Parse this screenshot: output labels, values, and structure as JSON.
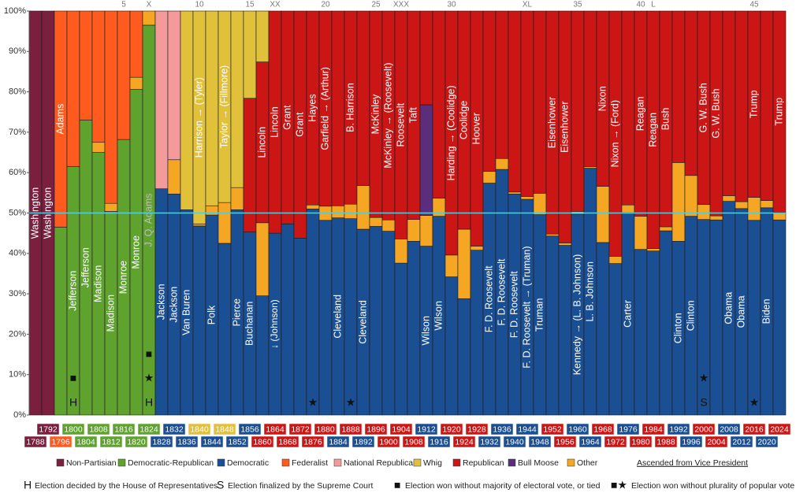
{
  "chart_data": {
    "type": "stacked_bar",
    "categories": [
      "1788",
      "1792",
      "1796",
      "1800",
      "1804",
      "1808",
      "1812",
      "1816",
      "1820",
      "1824",
      "1828",
      "1832",
      "1836",
      "1840",
      "1844",
      "1848",
      "1852",
      "1856",
      "1860",
      "1864",
      "1868",
      "1872",
      "1876",
      "1880",
      "1884",
      "1888",
      "1892",
      "1896",
      "1900",
      "1904",
      "1908",
      "1912",
      "1916",
      "1920",
      "1924",
      "1928",
      "1932",
      "1936",
      "1940",
      "1944",
      "1948",
      "1952",
      "1956",
      "1960",
      "1964",
      "1968",
      "1972",
      "1976",
      "1980",
      "1984",
      "1988",
      "1992",
      "1996",
      "2000",
      "2004",
      "2008",
      "2012",
      "2016",
      "2020",
      "2024"
    ],
    "series": [
      {
        "name": "Non-Partisian",
        "color": "#7a1f3d",
        "values": [
          100,
          100,
          null,
          null,
          null,
          null,
          null,
          null,
          null,
          null,
          null,
          null,
          null,
          null,
          null,
          null,
          null,
          null,
          null,
          null,
          null,
          null,
          null,
          null,
          null,
          null,
          null,
          null,
          null,
          null,
          null,
          null,
          null,
          null,
          null,
          null,
          null,
          null,
          null,
          null,
          null,
          null,
          null,
          null,
          null,
          null,
          null,
          null,
          null,
          null,
          null,
          null,
          null,
          null,
          null,
          null,
          null,
          null,
          null,
          null
        ]
      },
      {
        "name": "Democratic-Republican",
        "color": "#5fa32e",
        "values": [
          null,
          null,
          46.5,
          61.5,
          73,
          65,
          50.4,
          68.2,
          80.6,
          96.5,
          null,
          null,
          null,
          null,
          null,
          null,
          null,
          null,
          null,
          null,
          null,
          null,
          null,
          null,
          null,
          null,
          null,
          null,
          null,
          null,
          null,
          null,
          null,
          null,
          null,
          null,
          null,
          null,
          null,
          null,
          null,
          null,
          null,
          null,
          null,
          null,
          null,
          null,
          null,
          null,
          null,
          null,
          null,
          null,
          null,
          null,
          null,
          null,
          null,
          null
        ]
      },
      {
        "name": "Democratic",
        "color": "#1b4f93",
        "values": [
          null,
          null,
          null,
          null,
          null,
          null,
          null,
          null,
          null,
          null,
          56,
          54.7,
          50.8,
          46.8,
          49.5,
          42.5,
          50.8,
          45.3,
          29.5,
          45,
          47.3,
          43.8,
          51,
          48.2,
          48.8,
          48.6,
          46,
          46.7,
          45.5,
          37.6,
          43,
          41.8,
          49.2,
          34.2,
          28.8,
          40.8,
          57.4,
          60.8,
          54.7,
          53.4,
          49.6,
          44.3,
          42,
          49.7,
          61.1,
          42.7,
          37.5,
          50.1,
          41,
          40.6,
          45.6,
          43,
          49.2,
          48.4,
          48.3,
          52.9,
          51.1,
          48.2,
          51.3,
          48.3
        ]
      },
      {
        "name": "Federalist",
        "color": "#ff5b1f",
        "values": [
          null,
          null,
          53.5,
          38.5,
          27,
          32.5,
          47.6,
          31.8,
          16.4,
          null,
          null,
          null,
          null,
          null,
          null,
          null,
          null,
          null,
          null,
          null,
          null,
          null,
          null,
          null,
          null,
          null,
          null,
          null,
          null,
          null,
          null,
          null,
          null,
          null,
          null,
          null,
          null,
          null,
          null,
          null,
          null,
          null,
          null,
          null,
          null,
          null,
          null,
          null,
          null,
          null,
          null,
          null,
          null,
          null,
          null,
          null,
          null,
          null,
          null,
          null
        ]
      },
      {
        "name": "National Republican",
        "color": "#f49a9a",
        "values": [
          null,
          null,
          null,
          null,
          null,
          null,
          null,
          null,
          null,
          null,
          44,
          36.8,
          null,
          null,
          null,
          null,
          null,
          null,
          null,
          null,
          null,
          null,
          null,
          null,
          null,
          null,
          null,
          null,
          null,
          null,
          null,
          null,
          null,
          null,
          null,
          null,
          null,
          null,
          null,
          null,
          null,
          null,
          null,
          null,
          null,
          null,
          null,
          null,
          null,
          null,
          null,
          null,
          null,
          null,
          null,
          null,
          null,
          null,
          null,
          null
        ]
      },
      {
        "name": "Whig",
        "color": "#e2c13a",
        "values": [
          null,
          null,
          null,
          null,
          null,
          null,
          null,
          null,
          null,
          null,
          null,
          null,
          49.2,
          52.7,
          48.2,
          47.4,
          43.7,
          21.6,
          12.6,
          null,
          null,
          null,
          null,
          null,
          null,
          null,
          null,
          null,
          null,
          null,
          null,
          null,
          null,
          null,
          null,
          null,
          null,
          null,
          null,
          null,
          null,
          null,
          null,
          null,
          null,
          null,
          null,
          null,
          null,
          null,
          null,
          null,
          null,
          null,
          null,
          null,
          null,
          null,
          null,
          null
        ]
      },
      {
        "name": "Republican",
        "color": "#cc1616",
        "values": [
          null,
          null,
          null,
          null,
          null,
          null,
          null,
          null,
          null,
          null,
          null,
          null,
          null,
          null,
          null,
          null,
          null,
          33.1,
          39.8,
          55,
          52.7,
          56.2,
          48,
          48.3,
          48.2,
          47.8,
          43.2,
          51.1,
          51.7,
          56.4,
          51.6,
          23.2,
          46.3,
          60.4,
          54,
          58.2,
          39.7,
          36.5,
          44.8,
          45.9,
          45.1,
          55.2,
          57.4,
          49.6,
          38.5,
          43.4,
          60.7,
          48,
          50.8,
          58.8,
          53.4,
          37.5,
          40.7,
          47.9,
          50.7,
          45.7,
          47.2,
          46.1,
          46.9,
          49.8
        ]
      },
      {
        "name": "Bull Moose",
        "color": "#5a2d7d",
        "values": [
          null,
          null,
          null,
          null,
          null,
          null,
          null,
          null,
          null,
          null,
          null,
          null,
          null,
          null,
          null,
          null,
          null,
          null,
          null,
          null,
          null,
          null,
          null,
          null,
          null,
          null,
          null,
          null,
          null,
          null,
          null,
          27.4,
          null,
          null,
          null,
          null,
          null,
          null,
          null,
          null,
          null,
          null,
          null,
          null,
          null,
          null,
          null,
          null,
          null,
          null,
          null,
          null,
          null,
          null,
          null,
          null,
          null,
          null,
          null,
          null
        ]
      },
      {
        "name": "Other",
        "color": "#f5a623",
        "values": [
          null,
          null,
          null,
          null,
          null,
          2.5,
          2,
          null,
          3,
          3.5,
          null,
          8.5,
          null,
          0.5,
          2.3,
          10.1,
          5.5,
          null,
          18.1,
          null,
          null,
          null,
          1,
          3.5,
          3,
          3.6,
          10.8,
          2.2,
          2.8,
          6,
          5.4,
          7.6,
          4.5,
          5.4,
          17.2,
          1,
          2.9,
          2.7,
          0.5,
          0.7,
          5.3,
          0.5,
          0.6,
          0.7,
          0.4,
          13.9,
          1.8,
          1.9,
          8.2,
          0.6,
          1,
          19.5,
          10.1,
          3.7,
          1,
          1.4,
          1.7,
          5.7,
          1.8,
          1.9
        ]
      }
    ],
    "ylim": [
      0,
      100
    ],
    "yticks": [
      {
        "value": 0,
        "label": "0%"
      },
      {
        "value": 10,
        "label": "10%"
      },
      {
        "value": 20,
        "label": "20%"
      },
      {
        "value": 30,
        "label": "30%"
      },
      {
        "value": 40,
        "label": "40%"
      },
      {
        "value": 50,
        "label": "50%"
      },
      {
        "value": 60,
        "label": "60%"
      },
      {
        "value": 70,
        "label": "70%"
      },
      {
        "value": 80,
        "label": "80%"
      },
      {
        "value": 90,
        "label": "90%"
      },
      {
        "value": 100,
        "label": "100%"
      }
    ],
    "reference_line": {
      "value": 50,
      "color": "#4fd0e0"
    },
    "year_colors": [
      "#7a1f3d",
      "#7a1f3d",
      "#ff5b1f",
      "#5fa32e",
      "#5fa32e",
      "#5fa32e",
      "#5fa32e",
      "#5fa32e",
      "#5fa32e",
      "#5fa32e",
      "#1b4f93",
      "#1b4f93",
      "#1b4f93",
      "#e2c13a",
      "#1b4f93",
      "#e2c13a",
      "#1b4f93",
      "#1b4f93",
      "#cc1616",
      "#cc1616",
      "#cc1616",
      "#cc1616",
      "#cc1616",
      "#cc1616",
      "#1b4f93",
      "#cc1616",
      "#1b4f93",
      "#cc1616",
      "#cc1616",
      "#cc1616",
      "#cc1616",
      "#1b4f93",
      "#1b4f93",
      "#cc1616",
      "#cc1616",
      "#cc1616",
      "#1b4f93",
      "#1b4f93",
      "#1b4f93",
      "#1b4f93",
      "#1b4f93",
      "#cc1616",
      "#cc1616",
      "#1b4f93",
      "#1b4f93",
      "#cc1616",
      "#cc1616",
      "#1b4f93",
      "#cc1616",
      "#cc1616",
      "#cc1616",
      "#1b4f93",
      "#1b4f93",
      "#cc1616",
      "#cc1616",
      "#1b4f93",
      "#1b4f93",
      "#cc1616",
      "#1b4f93",
      "#cc1616"
    ],
    "labels": [
      "Washington",
      "Washington",
      "Adams",
      "Jefferson",
      "Jefferson",
      "Madison",
      "Madison",
      "Monroe",
      "Monroe",
      "J. Q. Adams",
      "Jackson",
      "Jackson",
      "Van Buren",
      "Harrison → (Tyler)",
      "Polk",
      "Taylor → (Fillmore)",
      "Pierce",
      "Buchanan",
      "Lincoln",
      "Lincoln",
      "Grant",
      "Grant",
      "Hayes",
      "Garfield → (Arthur)",
      "Cleveland",
      "B. Harrison",
      "Cleveland",
      "McKinley",
      "McKinley → (Roosevelt)",
      "Roosevelt",
      "Taft",
      "Wilson",
      "Wilson",
      "Harding → (Coolidge)",
      "Coolidge",
      "Hoover",
      "F. D. Roosevelt",
      "F. D. Roosevelt",
      "F. D. Roosevelt",
      "F. D. Roosevelt → (Truman)",
      "Truman",
      "Eisenhower",
      "Eisenhower",
      "Kennedy → (L. B. Johnson)",
      "L. B. Johnson",
      "Nixon",
      "Nixon → (Ford)",
      "Carter",
      "Reagan",
      "Reagan",
      "Bush",
      "Clinton",
      "Clinton",
      "G. W. Bush",
      "G. W. Bush",
      "Obama",
      "Obama",
      "Trump",
      "Biden",
      "Trump"
    ],
    "sub_labels": [
      null,
      null,
      null,
      null,
      null,
      null,
      null,
      null,
      null,
      null,
      null,
      null,
      null,
      null,
      null,
      null,
      null,
      null,
      null,
      "↓ (Johnson)",
      null,
      null,
      null,
      null,
      null,
      null,
      null,
      null,
      null,
      null,
      null,
      null,
      null,
      null,
      null,
      null,
      null,
      null,
      null,
      null,
      null,
      null,
      null,
      null,
      null,
      null,
      null,
      null,
      null,
      null,
      null,
      null,
      null,
      null,
      null,
      null,
      null,
      null,
      null,
      null
    ],
    "notes": [
      null,
      null,
      null,
      [
        "■",
        "H"
      ],
      null,
      null,
      null,
      null,
      null,
      [
        "■",
        "★",
        "H"
      ],
      null,
      null,
      null,
      null,
      null,
      null,
      null,
      null,
      null,
      null,
      null,
      null,
      [
        "★"
      ],
      null,
      null,
      [
        "★"
      ],
      null,
      null,
      null,
      null,
      null,
      null,
      null,
      null,
      null,
      null,
      null,
      null,
      null,
      null,
      null,
      null,
      null,
      null,
      null,
      null,
      null,
      null,
      null,
      null,
      null,
      null,
      null,
      [
        "★",
        "S"
      ],
      null,
      null,
      null,
      [
        "★"
      ],
      null,
      null
    ],
    "top_labels": [
      null,
      null,
      null,
      null,
      null,
      null,
      null,
      5,
      null,
      "X",
      null,
      null,
      null,
      10,
      null,
      null,
      null,
      15,
      null,
      "XX",
      null,
      null,
      null,
      20,
      null,
      null,
      null,
      25,
      null,
      "XXX",
      null,
      null,
      null,
      30,
      null,
      null,
      null,
      null,
      null,
      "XL",
      null,
      null,
      null,
      35,
      null,
      null,
      null,
      null,
      40,
      "L",
      null,
      null,
      null,
      null,
      null,
      null,
      null,
      45,
      null,
      null
    ],
    "ascended_note": "Ascended from Vice President",
    "key": [
      {
        "symbol": "H",
        "text": "Election decided by the House of Representatives"
      },
      {
        "symbol": "S",
        "text": "Election finalized by the Supreme Court"
      },
      {
        "symbol": "■",
        "text": "Election won without majority of electoral vote, or tied"
      },
      {
        "symbol": "■★",
        "text": "Election won without plurality of popular vote"
      }
    ]
  }
}
